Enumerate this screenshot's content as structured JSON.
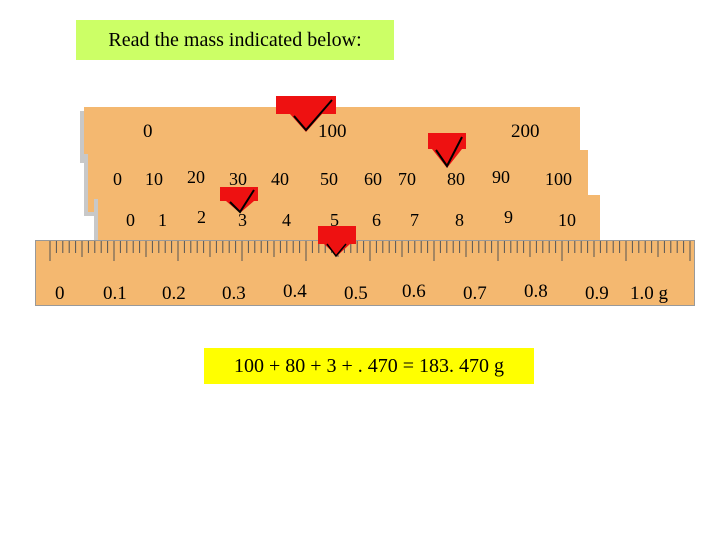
{
  "prompt": "Read the mass indicated below:",
  "beam_100": {
    "labels": [
      "0",
      "100",
      "200"
    ],
    "rider_value": 100
  },
  "beam_10": {
    "labels": [
      "0",
      "10",
      "20",
      "30",
      "40",
      "50",
      "60",
      "70",
      "80",
      "90",
      "100"
    ],
    "rider_value": 80
  },
  "beam_1": {
    "labels": [
      "0",
      "1",
      "2",
      "3",
      "4",
      "5",
      "6",
      "7",
      "8",
      "9",
      "10"
    ],
    "rider_value": 3
  },
  "beam_fine": {
    "labels": [
      "0",
      "0.1",
      "0.2",
      "0.3",
      "0.4",
      "0.5",
      "0.6",
      "0.7",
      "0.8",
      "0.9",
      "1.0 g"
    ],
    "pointer_value": 0.47
  },
  "answer": "100 + 80 + 3 + . 470 = 183. 470 g",
  "colors": {
    "beam": "#f4b870",
    "rider": "#ee1111",
    "prompt_bg": "#ccff66",
    "answer_bg": "#ffff00"
  }
}
